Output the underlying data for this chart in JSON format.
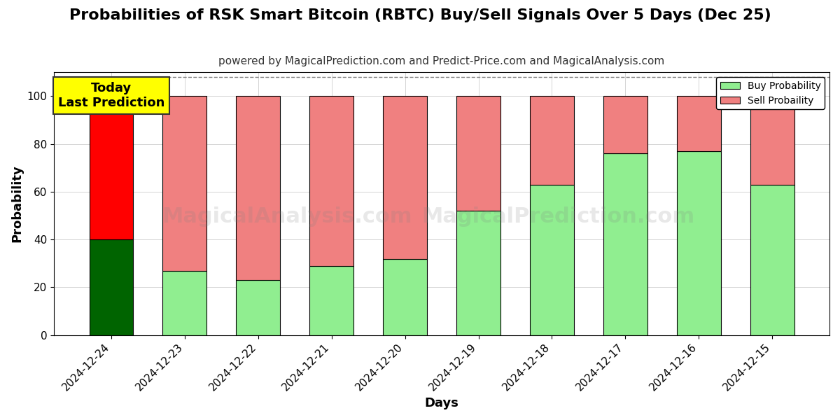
{
  "title": "Probabilities of RSK Smart Bitcoin (RBTC) Buy/Sell Signals Over 5 Days (Dec 25)",
  "subtitle": "powered by MagicalPrediction.com and Predict-Price.com and MagicalAnalysis.com",
  "xlabel": "Days",
  "ylabel": "Probability",
  "categories": [
    "2024-12-24",
    "2024-12-23",
    "2024-12-22",
    "2024-12-21",
    "2024-12-20",
    "2024-12-19",
    "2024-12-18",
    "2024-12-17",
    "2024-12-16",
    "2024-12-15"
  ],
  "buy_values": [
    40,
    27,
    23,
    29,
    32,
    52,
    63,
    76,
    77,
    63
  ],
  "sell_values": [
    60,
    73,
    77,
    71,
    68,
    48,
    37,
    24,
    23,
    37
  ],
  "buy_color_today": "#006400",
  "sell_color_today": "#FF0000",
  "buy_color_rest": "#90EE90",
  "sell_color_rest": "#F08080",
  "bar_edge_color": "#000000",
  "today_annotation": "Today\nLast Prediction",
  "today_annotation_bg": "#FFFF00",
  "legend_buy_label": "Buy Probability",
  "legend_sell_label": "Sell Probaility",
  "ylim": [
    0,
    110
  ],
  "yticks": [
    0,
    20,
    40,
    60,
    80,
    100
  ],
  "watermark_text1": "MagicalAnalysis.com",
  "watermark_text2": "MagicalPrediction.com",
  "dashed_line_y": 108,
  "title_fontsize": 16,
  "subtitle_fontsize": 11,
  "axis_label_fontsize": 13,
  "tick_fontsize": 11,
  "background_color": "#ffffff",
  "grid_color": "#aaaaaa"
}
